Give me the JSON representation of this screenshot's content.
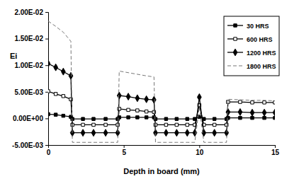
{
  "chart_data": {
    "type": "line",
    "x_label": "Depth in board (mm)",
    "y_label": "Ei",
    "x": [
      0,
      0.5,
      1.0,
      1.5,
      1.6,
      2.3,
      3.0,
      3.8,
      4.6,
      4.7,
      5.3,
      5.9,
      6.5,
      7.0,
      7.1,
      7.8,
      8.5,
      9.2,
      9.7,
      10.0,
      10.3,
      11.0,
      11.8,
      11.9,
      12.7,
      13.5,
      14.3,
      15.0
    ],
    "xlim": [
      0,
      15
    ],
    "xticks": [
      0,
      5,
      10,
      15
    ],
    "ylim": [
      -0.005,
      0.02
    ],
    "yticks": [
      {
        "value": -0.005,
        "label": "-5.00E-03"
      },
      {
        "value": 0,
        "label": "0.00E+00"
      },
      {
        "value": 0.005,
        "label": "5.00E-03"
      },
      {
        "value": 0.01,
        "label": "1.00E-02"
      },
      {
        "value": 0.015,
        "label": "1.50E-02"
      },
      {
        "value": 0.02,
        "label": "2.00E-02"
      }
    ],
    "grid": false,
    "legend": "upper right",
    "series": [
      {
        "name": "30 HRS",
        "color": "#000000",
        "marker": "square",
        "line_style": "solid",
        "values": [
          0.0008,
          0.0007,
          0.0005,
          0.0003,
          -0.0001,
          -0.0001,
          -0.0001,
          -0.0001,
          -0.0001,
          0.0002,
          0.0002,
          0.0002,
          0.0002,
          0.0002,
          -0.0001,
          -0.0001,
          -0.0001,
          -0.0001,
          -0.0001,
          0.0003,
          -0.0001,
          -0.0001,
          -0.0001,
          0.0001,
          0.0001,
          0.0001,
          0.0001,
          0.0001
        ]
      },
      {
        "name": "600 HRS",
        "color": "#000000",
        "marker": "square-open",
        "line_style": "solid",
        "values": [
          0.0051,
          0.0046,
          0.0042,
          0.0036,
          -0.0012,
          -0.0012,
          -0.0012,
          -0.0012,
          -0.0012,
          0.0018,
          0.0016,
          0.0015,
          0.0013,
          0.0012,
          -0.0012,
          -0.0012,
          -0.0012,
          -0.0012,
          -0.0012,
          0.0025,
          -0.0012,
          -0.0012,
          -0.0012,
          0.0031,
          0.0031,
          0.003,
          0.003,
          0.003
        ]
      },
      {
        "name": "1200 HRS",
        "color": "#000000",
        "marker": "diamond",
        "line_style": "solid",
        "values": [
          0.0103,
          0.0096,
          0.0088,
          0.008,
          -0.0027,
          -0.0027,
          -0.0027,
          -0.0027,
          -0.0027,
          0.0043,
          0.0041,
          0.0038,
          0.0036,
          0.0035,
          -0.0027,
          -0.0027,
          -0.0027,
          -0.0027,
          -0.0027,
          0.004,
          -0.0027,
          -0.0027,
          -0.0027,
          0.0012,
          0.0012,
          0.0011,
          0.0011,
          0.0011
        ]
      },
      {
        "name": "1800 HRS",
        "color": "#777777",
        "marker": "none",
        "line_style": "dashed",
        "values": [
          0.0183,
          0.0173,
          0.0162,
          0.0145,
          -0.0045,
          -0.0045,
          -0.0045,
          -0.0045,
          -0.0045,
          0.0089,
          0.0086,
          0.0083,
          0.008,
          0.0078,
          -0.0045,
          -0.0045,
          -0.0045,
          -0.0045,
          -0.0045,
          0.0022,
          -0.0045,
          -0.0045,
          -0.0045,
          0.0036,
          0.0035,
          0.0034,
          0.0034,
          0.0033
        ]
      }
    ]
  }
}
